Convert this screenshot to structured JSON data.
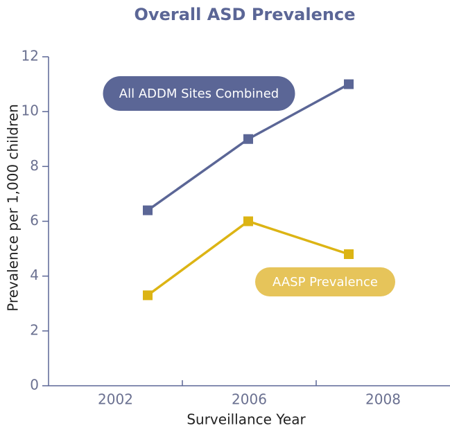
{
  "chart_data": {
    "type": "line",
    "title": "Overall ASD Prevalence",
    "xlabel": "Surveillance Year",
    "ylabel": "Prevalence per 1,000 children",
    "categories": [
      "2002",
      "2006",
      "2008"
    ],
    "series": [
      {
        "name": "All ADDM Sites Combined",
        "color": "#5b6696",
        "values": [
          6.4,
          9.0,
          11.0
        ]
      },
      {
        "name": "AASP Prevalence",
        "color": "#dcb414",
        "values": [
          3.3,
          6.0,
          4.8
        ]
      }
    ],
    "ylim": [
      0,
      12
    ],
    "yticks": [
      0,
      2,
      4,
      6,
      8,
      10,
      12
    ],
    "grid": false
  }
}
